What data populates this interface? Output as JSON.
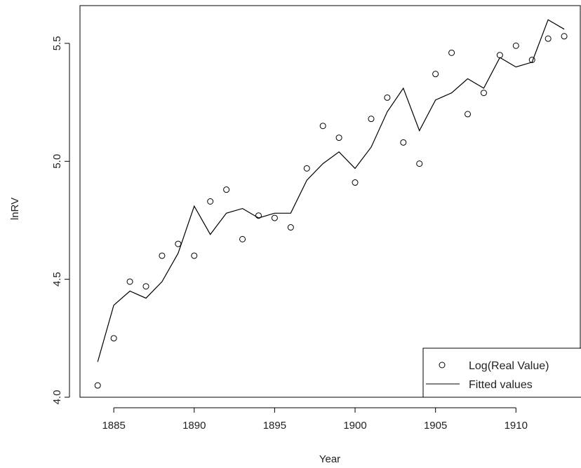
{
  "chart_data": {
    "type": "line",
    "title": "",
    "xlabel": "Year",
    "ylabel": "lnRV",
    "xlim": [
      1882.9,
      1914.0
    ],
    "ylim": [
      4.0,
      5.66
    ],
    "x_ticks": [
      "1885",
      "1890",
      "1895",
      "1900",
      "1905",
      "1910"
    ],
    "y_ticks": [
      "4.0",
      "4.5",
      "5.0",
      "5.5"
    ],
    "grid": false,
    "legend_position": "bottom-right",
    "series": [
      {
        "name": "Log(Real Value)",
        "kind": "points",
        "marker": "open-circle",
        "x": [
          1884,
          1885,
          1886,
          1887,
          1888,
          1889,
          1890,
          1891,
          1892,
          1893,
          1894,
          1895,
          1896,
          1897,
          1898,
          1899,
          1900,
          1901,
          1902,
          1903,
          1904,
          1905,
          1906,
          1907,
          1908,
          1909,
          1910,
          1911,
          1912,
          1913
        ],
        "y": [
          4.05,
          4.25,
          4.49,
          4.47,
          4.6,
          4.65,
          4.6,
          4.83,
          4.88,
          4.67,
          4.77,
          4.76,
          4.72,
          4.97,
          5.15,
          5.1,
          4.91,
          5.18,
          5.27,
          5.08,
          4.99,
          5.37,
          5.46,
          5.2,
          5.29,
          5.45,
          5.49,
          5.43,
          5.52,
          5.53
        ]
      },
      {
        "name": "Fitted values",
        "kind": "line",
        "x": [
          1884,
          1885,
          1886,
          1887,
          1888,
          1889,
          1890,
          1891,
          1892,
          1893,
          1894,
          1895,
          1896,
          1897,
          1898,
          1899,
          1900,
          1901,
          1902,
          1903,
          1904,
          1905,
          1906,
          1907,
          1908,
          1909,
          1910,
          1911,
          1912,
          1913
        ],
        "y": [
          4.15,
          4.39,
          4.45,
          4.42,
          4.49,
          4.61,
          4.81,
          4.69,
          4.78,
          4.8,
          4.76,
          4.78,
          4.78,
          4.92,
          4.99,
          5.04,
          4.97,
          5.06,
          5.21,
          5.31,
          5.13,
          5.26,
          5.29,
          5.35,
          5.31,
          5.44,
          5.4,
          5.42,
          5.6,
          5.56
        ]
      }
    ]
  }
}
